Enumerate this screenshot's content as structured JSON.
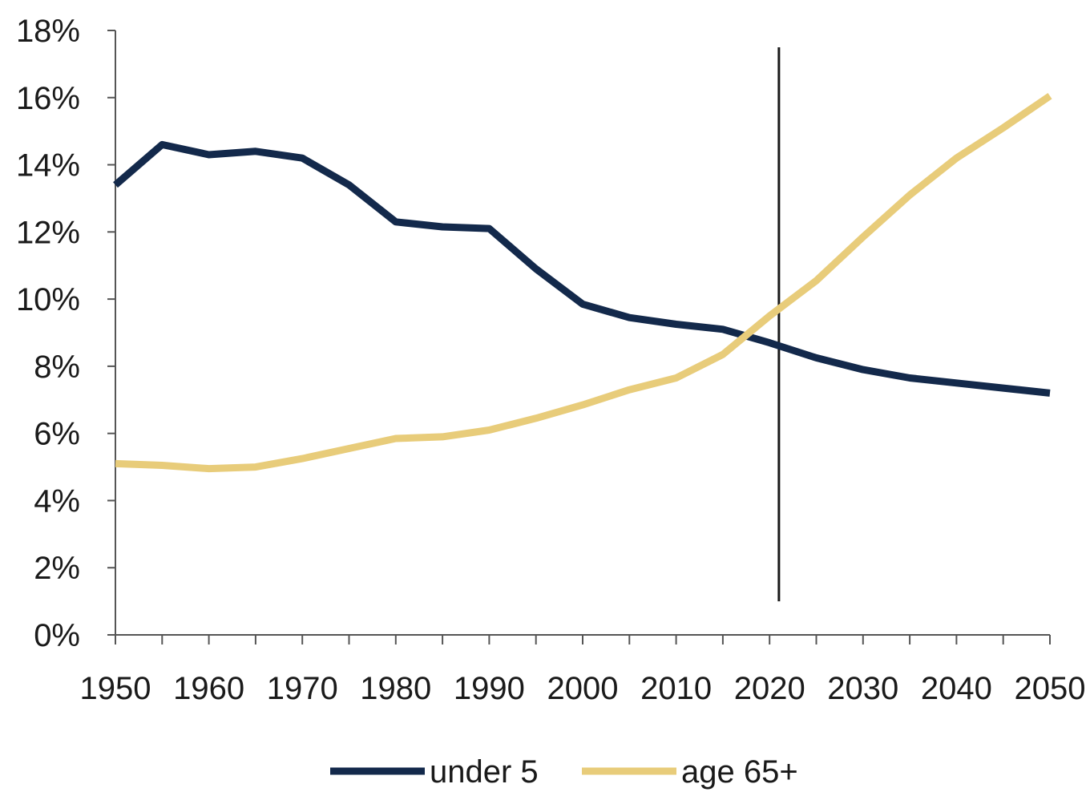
{
  "chart_data": {
    "type": "line",
    "x": [
      1950,
      1955,
      1960,
      1965,
      1970,
      1975,
      1980,
      1985,
      1990,
      1995,
      2000,
      2005,
      2010,
      2015,
      2020,
      2025,
      2030,
      2035,
      2040,
      2045,
      2050
    ],
    "series": [
      {
        "name": "under 5",
        "color": "#13294b",
        "values": [
          13.4,
          14.6,
          14.3,
          14.4,
          14.2,
          13.4,
          12.3,
          12.15,
          12.1,
          10.9,
          9.85,
          9.45,
          9.25,
          9.1,
          8.7,
          8.25,
          7.9,
          7.65,
          7.5,
          7.35,
          7.2
        ]
      },
      {
        "name": "age 65+",
        "color": "#e8cc7a",
        "values": [
          5.1,
          5.05,
          4.95,
          5.0,
          5.25,
          5.55,
          5.85,
          5.9,
          6.1,
          6.45,
          6.85,
          7.3,
          7.65,
          8.35,
          9.5,
          10.55,
          11.85,
          13.1,
          14.2,
          15.1,
          16.05
        ]
      }
    ],
    "xticks": [
      "1950",
      "1960",
      "1970",
      "1980",
      "1990",
      "2000",
      "2010",
      "2020",
      "2030",
      "2040",
      "2050"
    ],
    "yticks": [
      "0%",
      "2%",
      "4%",
      "6%",
      "8%",
      "10%",
      "12%",
      "14%",
      "16%",
      "18%"
    ],
    "xlim": [
      1950,
      2050
    ],
    "ylim": [
      0,
      18
    ],
    "vertical_marker_x": 2021,
    "vertical_marker_ylim": [
      1,
      17.5
    ],
    "grid": false,
    "legend_position": "bottom-center"
  }
}
